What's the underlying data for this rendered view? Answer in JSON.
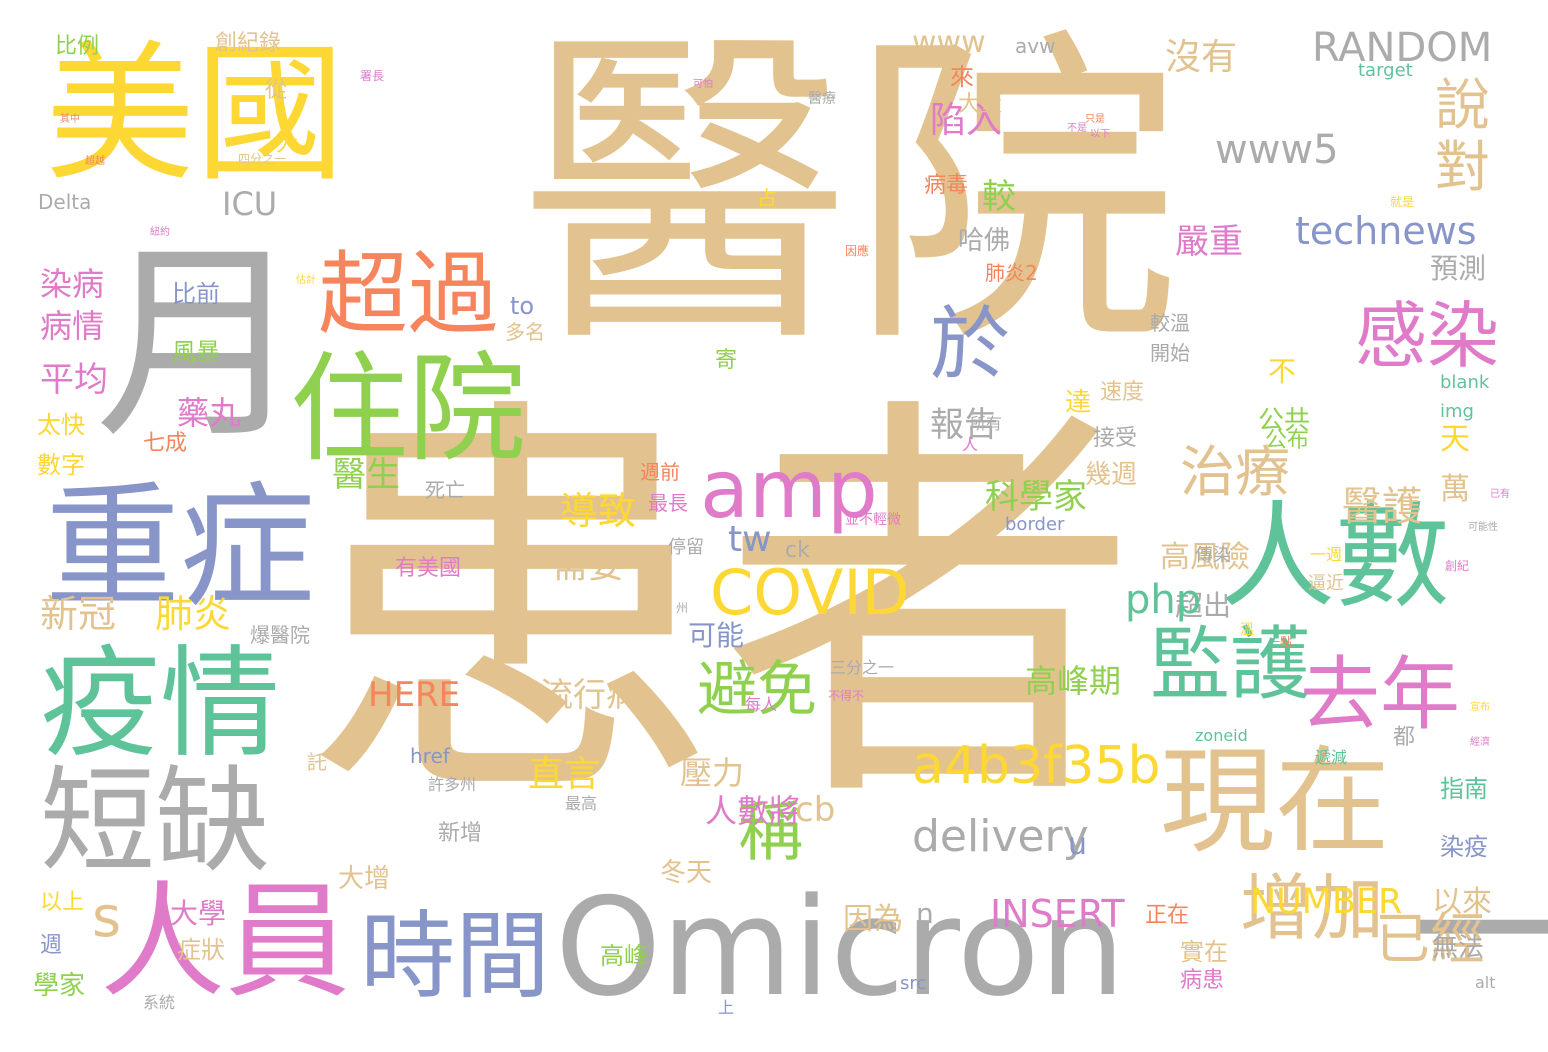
{
  "palette": {
    "tan": "#e2c38f",
    "yellow": "#fdd835",
    "gray": "#ababab",
    "blue": "#8895c9",
    "green": "#5fc39a",
    "lime": "#8fd14f",
    "orange": "#f6845d",
    "pink": "#e07bc9"
  },
  "words": [
    "醫院",
    "患者",
    "美國",
    "月",
    "重症",
    "疫情",
    "短缺",
    "人員",
    "時間",
    "Omicron",
    "一",
    "人數",
    "現在",
    "住院",
    "超過",
    "amp",
    "於",
    "感染",
    "說",
    "對",
    "去年",
    "增加",
    "已經",
    "監護",
    "治療",
    "醫護",
    "COVID",
    "避免",
    "稱",
    "a4b3f35b",
    "delivery",
    "RANDOM",
    "www5",
    "technews",
    "NUMBER",
    "INSERT",
    "HERE",
    "流行病",
    "有美國",
    "需要",
    "新冠",
    "肺炎",
    "ICU",
    "www",
    "avw",
    "沒有",
    "較",
    "陷入",
    "來",
    "嚴重",
    "病毒",
    "哈佛",
    "預測",
    "科學家",
    "報告",
    "醫生",
    "導致",
    "直言",
    "壓力",
    "人數將",
    "高峰期",
    "高風險",
    "超出",
    "可能",
    "php",
    "tw",
    "ck",
    "cb",
    "s",
    "n",
    "u",
    "因為",
    "大學",
    "大增",
    "冬天",
    "高峰",
    "以來",
    "無法",
    "正在",
    "實在",
    "病患",
    "萬",
    "天",
    "幾週",
    "公共",
    "接受",
    "速度",
    "達",
    "不",
    "比前",
    "風暴",
    "藥丸",
    "七成",
    "平均",
    "病情",
    "染病",
    "太快",
    "數字",
    "以上",
    "週",
    "學家",
    "系統",
    "症狀",
    "比例",
    "創紀錄",
    "從",
    "大",
    "大量",
    "Delta",
    "占",
    "四分之一",
    "to",
    "多名",
    "寄",
    "公布",
    "開始",
    "較溫",
    "週前",
    "最長",
    "死亡",
    "停留",
    "傳染",
    "爆醫院",
    "三分之一",
    "許多州",
    "每人",
    "都",
    "指南",
    "染疫",
    "新增",
    "最高",
    "所有",
    "人",
    "border",
    "target",
    "blank",
    "img",
    "zoneid",
    "href",
    "src",
    "alt",
    "上",
    "並不輕微",
    "一週",
    "逼近",
    "溫",
    "州",
    "遞減",
    "創紀",
    "肺炎2",
    "託",
    "署長",
    "紐約",
    "醫療",
    "不是",
    "以下",
    "就是",
    "因應",
    "估計",
    "可能性",
    "宣布",
    "不得不",
    "一點",
    "經濟",
    "已有",
    "其中",
    "只是",
    "超越",
    "可怕"
  ]
}
